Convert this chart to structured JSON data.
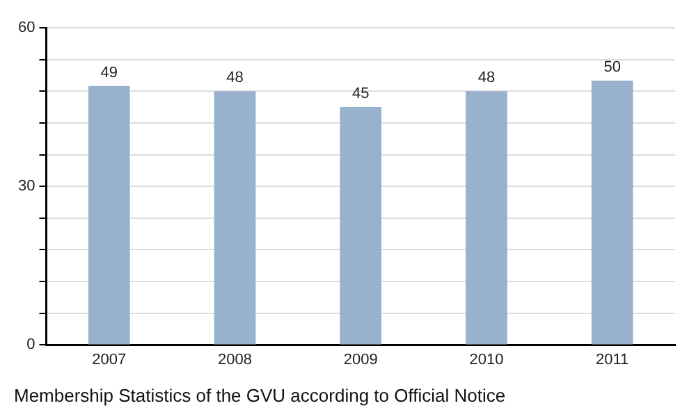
{
  "chart_data": {
    "type": "bar",
    "title": "Membership Statistics of the GVU according to Official Notice",
    "categories": [
      "2007",
      "2008",
      "2009",
      "2010",
      "2011"
    ],
    "values": [
      49,
      48,
      45,
      48,
      50
    ],
    "color": "#98b1cd",
    "ylim": [
      0,
      60
    ],
    "yticks": [
      0,
      {
        "value": 6,
        "label": null
      },
      {
        "value": 12,
        "label": null
      },
      {
        "value": 18,
        "label": null
      },
      {
        "value": 24,
        "label": null
      },
      30,
      {
        "value": 36,
        "label": null
      },
      {
        "value": 42,
        "label": null
      },
      {
        "value": 48,
        "label": null
      },
      {
        "value": 54,
        "label": null
      },
      60
    ],
    "grid": "y",
    "data_labels": true
  }
}
